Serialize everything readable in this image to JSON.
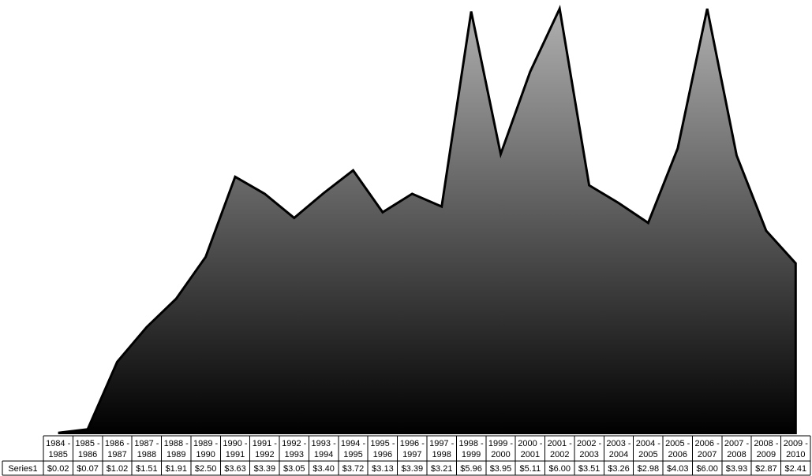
{
  "chart_data": {
    "type": "area",
    "title": "",
    "xlabel": "",
    "ylabel": "",
    "ylim": [
      0,
      6
    ],
    "grid": false,
    "legend": "none",
    "data_table": true,
    "categories": [
      [
        "1984 -",
        "1985"
      ],
      [
        "1985 -",
        "1986"
      ],
      [
        "1986 -",
        "1987"
      ],
      [
        "1987 -",
        "1988"
      ],
      [
        "1988 -",
        "1989"
      ],
      [
        "1989 -",
        "1990"
      ],
      [
        "1990 -",
        "1991"
      ],
      [
        "1991 -",
        "1992"
      ],
      [
        "1992 -",
        "1993"
      ],
      [
        "1993 -",
        "1994"
      ],
      [
        "1994 -",
        "1995"
      ],
      [
        "1995 -",
        "1996"
      ],
      [
        "1996 -",
        "1997"
      ],
      [
        "1997 -",
        "1998"
      ],
      [
        "1998 -",
        "1999"
      ],
      [
        "1999 -",
        "2000"
      ],
      [
        "2000 -",
        "2001"
      ],
      [
        "2001 -",
        "2002"
      ],
      [
        "2002 -",
        "2003"
      ],
      [
        "2003 -",
        "2004"
      ],
      [
        "2004 -",
        "2005"
      ],
      [
        "2005 -",
        "2006"
      ],
      [
        "2006 -",
        "2007"
      ],
      [
        "2007 -",
        "2008"
      ],
      [
        "2008 -",
        "2009"
      ],
      [
        "2009 -",
        "2010"
      ]
    ],
    "series": [
      {
        "name": "Series1",
        "values": [
          0.02,
          0.07,
          1.02,
          1.51,
          1.91,
          2.5,
          3.63,
          3.39,
          3.05,
          3.4,
          3.72,
          3.13,
          3.39,
          3.21,
          5.96,
          3.95,
          5.11,
          6.0,
          3.51,
          3.26,
          2.98,
          4.03,
          6.0,
          3.93,
          2.87,
          2.41
        ],
        "labels": [
          "$0.02",
          "$0.07",
          "$1.02",
          "$1.51",
          "$1.91",
          "$2.50",
          "$3.63",
          "$3.39",
          "$3.05",
          "$3.40",
          "$3.72",
          "$3.13",
          "$3.39",
          "$3.21",
          "$5.96",
          "$3.95",
          "$5.11",
          "$6.00",
          "$3.51",
          "$3.26",
          "$2.98",
          "$4.03",
          "$6.00",
          "$3.93",
          "$2.87",
          "$2.41"
        ]
      }
    ],
    "colors": {
      "fill_top": "#b0b0b0",
      "fill_bottom": "#000000",
      "stroke": "#000000"
    }
  }
}
